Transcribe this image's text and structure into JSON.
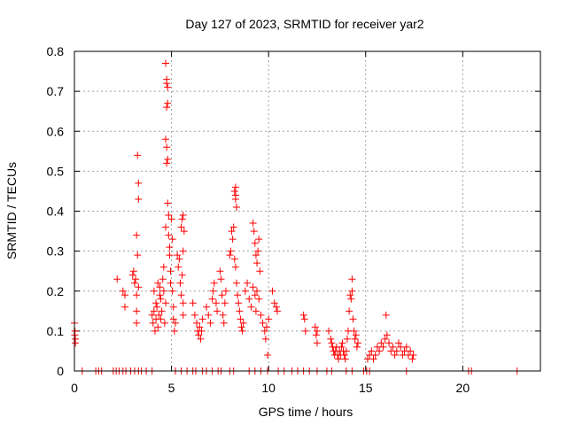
{
  "chart_data": {
    "type": "scatter",
    "title": "Day 127 of 2023, SRMTID for receiver yar2",
    "xlabel": "GPS time / hours",
    "ylabel": "SRMTID / TECUs",
    "xlim": [
      0,
      24
    ],
    "ylim": [
      0,
      0.8
    ],
    "x_ticks": [
      0,
      5,
      10,
      15,
      20
    ],
    "y_ticks": [
      0,
      0.1,
      0.2,
      0.3,
      0.4,
      0.5,
      0.6,
      0.7,
      0.8
    ],
    "x_tick_labels": [
      "0",
      "5",
      "10",
      "15",
      "20"
    ],
    "y_tick_labels": [
      "0",
      "0.1",
      "0.2",
      "0.3",
      "0.4",
      "0.5",
      "0.6",
      "0.7",
      "0.8"
    ],
    "grid": true,
    "marker": "+",
    "colors": {
      "points": "#ff0000",
      "grid": "#a0a0a0",
      "axes": "#000000"
    },
    "series": [
      {
        "name": "yar2",
        "points": [
          [
            0.0,
            0.12
          ],
          [
            0.02,
            0.09
          ],
          [
            0.03,
            0.1
          ],
          [
            0.05,
            0.08
          ],
          [
            0.05,
            0.07
          ],
          [
            2.2,
            0.23
          ],
          [
            2.5,
            0.2
          ],
          [
            2.6,
            0.16
          ],
          [
            2.6,
            0.19
          ],
          [
            3.0,
            0.24
          ],
          [
            3.05,
            0.25
          ],
          [
            3.1,
            0.22
          ],
          [
            3.15,
            0.23
          ],
          [
            3.2,
            0.19
          ],
          [
            3.2,
            0.15
          ],
          [
            3.2,
            0.12
          ],
          [
            3.25,
            0.29
          ],
          [
            3.3,
            0.21
          ],
          [
            3.2,
            0.34
          ],
          [
            3.3,
            0.47
          ],
          [
            3.3,
            0.43
          ],
          [
            3.25,
            0.54
          ],
          [
            4.0,
            0.14
          ],
          [
            4.05,
            0.12
          ],
          [
            4.1,
            0.15
          ],
          [
            4.15,
            0.1
          ],
          [
            4.2,
            0.13
          ],
          [
            4.25,
            0.16
          ],
          [
            4.3,
            0.11
          ],
          [
            4.35,
            0.14
          ],
          [
            4.4,
            0.19
          ],
          [
            4.45,
            0.13
          ],
          [
            4.1,
            0.2
          ],
          [
            4.2,
            0.17
          ],
          [
            4.3,
            0.22
          ],
          [
            4.4,
            0.21
          ],
          [
            4.45,
            0.18
          ],
          [
            4.5,
            0.15
          ],
          [
            4.55,
            0.23
          ],
          [
            4.6,
            0.2
          ],
          [
            4.6,
            0.26
          ],
          [
            4.65,
            0.12
          ],
          [
            4.7,
            0.17
          ],
          [
            4.7,
            0.36
          ],
          [
            4.7,
            0.77
          ],
          [
            4.75,
            0.73
          ],
          [
            4.75,
            0.72
          ],
          [
            4.8,
            0.71
          ],
          [
            4.8,
            0.67
          ],
          [
            4.75,
            0.66
          ],
          [
            4.7,
            0.58
          ],
          [
            4.75,
            0.56
          ],
          [
            4.8,
            0.53
          ],
          [
            4.75,
            0.52
          ],
          [
            4.8,
            0.42
          ],
          [
            4.85,
            0.39
          ],
          [
            4.85,
            0.34
          ],
          [
            4.9,
            0.31
          ],
          [
            4.9,
            0.29
          ],
          [
            4.95,
            0.25
          ],
          [
            4.95,
            0.22
          ],
          [
            5.0,
            0.38
          ],
          [
            5.05,
            0.33
          ],
          [
            5.05,
            0.2
          ],
          [
            5.1,
            0.16
          ],
          [
            5.1,
            0.13
          ],
          [
            5.15,
            0.1
          ],
          [
            5.2,
            0.12
          ],
          [
            5.3,
            0.29
          ],
          [
            5.35,
            0.26
          ],
          [
            5.4,
            0.28
          ],
          [
            5.45,
            0.22
          ],
          [
            5.5,
            0.19
          ],
          [
            5.55,
            0.24
          ],
          [
            5.6,
            0.17
          ],
          [
            5.6,
            0.14
          ],
          [
            5.5,
            0.36
          ],
          [
            5.55,
            0.38
          ],
          [
            5.6,
            0.39
          ],
          [
            5.65,
            0.35
          ],
          [
            5.6,
            0.3
          ],
          [
            6.1,
            0.17
          ],
          [
            6.2,
            0.14
          ],
          [
            6.3,
            0.12
          ],
          [
            6.35,
            0.1
          ],
          [
            6.4,
            0.09
          ],
          [
            6.45,
            0.11
          ],
          [
            6.5,
            0.08
          ],
          [
            6.55,
            0.1
          ],
          [
            6.6,
            0.13
          ],
          [
            6.8,
            0.16
          ],
          [
            6.9,
            0.14
          ],
          [
            7.0,
            0.12
          ],
          [
            7.1,
            0.18
          ],
          [
            7.15,
            0.2
          ],
          [
            7.2,
            0.22
          ],
          [
            7.3,
            0.17
          ],
          [
            7.35,
            0.15
          ],
          [
            7.5,
            0.25
          ],
          [
            7.55,
            0.23
          ],
          [
            7.6,
            0.19
          ],
          [
            7.65,
            0.14
          ],
          [
            7.7,
            0.12
          ],
          [
            7.75,
            0.17
          ],
          [
            7.8,
            0.2
          ],
          [
            8.0,
            0.29
          ],
          [
            8.05,
            0.3
          ],
          [
            8.1,
            0.35
          ],
          [
            8.15,
            0.33
          ],
          [
            8.2,
            0.36
          ],
          [
            8.25,
            0.28
          ],
          [
            8.3,
            0.26
          ],
          [
            8.25,
            0.45
          ],
          [
            8.3,
            0.46
          ],
          [
            8.3,
            0.43
          ],
          [
            8.35,
            0.41
          ],
          [
            8.3,
            0.44
          ],
          [
            8.35,
            0.22
          ],
          [
            8.4,
            0.19
          ],
          [
            8.45,
            0.17
          ],
          [
            8.5,
            0.15
          ],
          [
            8.55,
            0.13
          ],
          [
            8.6,
            0.11
          ],
          [
            8.65,
            0.1
          ],
          [
            8.7,
            0.12
          ],
          [
            8.8,
            0.2
          ],
          [
            8.9,
            0.22
          ],
          [
            9.0,
            0.18
          ],
          [
            9.1,
            0.16
          ],
          [
            9.2,
            0.21
          ],
          [
            9.3,
            0.19
          ],
          [
            9.35,
            0.15
          ],
          [
            9.2,
            0.37
          ],
          [
            9.25,
            0.35
          ],
          [
            9.3,
            0.32
          ],
          [
            9.35,
            0.29
          ],
          [
            9.4,
            0.27
          ],
          [
            9.45,
            0.3
          ],
          [
            9.5,
            0.33
          ],
          [
            9.55,
            0.25
          ],
          [
            9.4,
            0.2
          ],
          [
            9.5,
            0.18
          ],
          [
            9.6,
            0.14
          ],
          [
            9.7,
            0.12
          ],
          [
            9.8,
            0.1
          ],
          [
            9.85,
            0.08
          ],
          [
            9.9,
            0.11
          ],
          [
            9.95,
            0.04
          ],
          [
            10.0,
            0.13
          ],
          [
            10.2,
            0.2
          ],
          [
            10.3,
            0.17
          ],
          [
            10.4,
            0.16
          ],
          [
            10.45,
            0.15
          ],
          [
            11.8,
            0.14
          ],
          [
            11.85,
            0.13
          ],
          [
            11.9,
            0.1
          ],
          [
            12.4,
            0.11
          ],
          [
            12.45,
            0.09
          ],
          [
            12.5,
            0.07
          ],
          [
            12.5,
            0.1
          ],
          [
            13.1,
            0.1
          ],
          [
            13.2,
            0.08
          ],
          [
            13.25,
            0.07
          ],
          [
            13.3,
            0.06
          ],
          [
            13.35,
            0.05
          ],
          [
            13.4,
            0.04
          ],
          [
            13.45,
            0.05
          ],
          [
            13.5,
            0.06
          ],
          [
            13.55,
            0.04
          ],
          [
            13.6,
            0.03
          ],
          [
            13.65,
            0.05
          ],
          [
            13.7,
            0.04
          ],
          [
            13.75,
            0.06
          ],
          [
            13.8,
            0.07
          ],
          [
            13.85,
            0.05
          ],
          [
            13.9,
            0.04
          ],
          [
            13.95,
            0.03
          ],
          [
            14.0,
            0.05
          ],
          [
            14.05,
            0.08
          ],
          [
            14.1,
            0.1
          ],
          [
            14.15,
            0.15
          ],
          [
            14.2,
            0.19
          ],
          [
            14.25,
            0.18
          ],
          [
            14.3,
            0.2
          ],
          [
            14.3,
            0.23
          ],
          [
            14.35,
            0.13
          ],
          [
            14.4,
            0.1
          ],
          [
            14.45,
            0.08
          ],
          [
            14.5,
            0.09
          ],
          [
            14.55,
            0.06
          ],
          [
            14.6,
            0.07
          ],
          [
            15.1,
            0.03
          ],
          [
            15.2,
            0.04
          ],
          [
            15.3,
            0.05
          ],
          [
            15.4,
            0.03
          ],
          [
            15.5,
            0.04
          ],
          [
            15.6,
            0.06
          ],
          [
            15.7,
            0.05
          ],
          [
            15.8,
            0.07
          ],
          [
            15.9,
            0.06
          ],
          [
            16.0,
            0.08
          ],
          [
            16.05,
            0.14
          ],
          [
            16.1,
            0.09
          ],
          [
            16.2,
            0.07
          ],
          [
            16.3,
            0.05
          ],
          [
            16.4,
            0.06
          ],
          [
            16.5,
            0.04
          ],
          [
            16.6,
            0.05
          ],
          [
            16.7,
            0.07
          ],
          [
            16.8,
            0.06
          ],
          [
            16.9,
            0.04
          ],
          [
            17.0,
            0.05
          ],
          [
            17.1,
            0.06
          ],
          [
            17.2,
            0.04
          ],
          [
            17.3,
            0.05
          ],
          [
            17.4,
            0.03
          ],
          [
            17.45,
            0.04
          ],
          [
            0.4,
            0.0
          ],
          [
            1.1,
            0.0
          ],
          [
            1.25,
            0.0
          ],
          [
            1.4,
            0.0
          ],
          [
            2.0,
            0.0
          ],
          [
            2.15,
            0.0
          ],
          [
            2.3,
            0.0
          ],
          [
            2.5,
            0.0
          ],
          [
            2.65,
            0.0
          ],
          [
            2.9,
            0.0
          ],
          [
            3.1,
            0.0
          ],
          [
            3.3,
            0.0
          ],
          [
            3.45,
            0.0
          ],
          [
            3.7,
            0.0
          ],
          [
            4.0,
            0.0
          ],
          [
            5.2,
            0.0
          ],
          [
            5.5,
            0.0
          ],
          [
            5.8,
            0.0
          ],
          [
            6.1,
            0.0
          ],
          [
            6.25,
            0.0
          ],
          [
            6.6,
            0.0
          ],
          [
            6.8,
            0.0
          ],
          [
            7.1,
            0.0
          ],
          [
            7.4,
            0.0
          ],
          [
            7.55,
            0.0
          ],
          [
            8.0,
            0.0
          ],
          [
            8.2,
            0.0
          ],
          [
            9.0,
            0.0
          ],
          [
            9.3,
            0.0
          ],
          [
            9.6,
            0.0
          ],
          [
            9.95,
            0.0
          ],
          [
            10.5,
            0.0
          ],
          [
            10.8,
            0.0
          ],
          [
            11.2,
            0.0
          ],
          [
            11.5,
            0.0
          ],
          [
            11.8,
            0.0
          ],
          [
            12.1,
            0.0
          ],
          [
            12.5,
            0.0
          ],
          [
            13.0,
            0.0
          ],
          [
            13.25,
            0.0
          ],
          [
            14.0,
            0.0
          ],
          [
            14.3,
            0.0
          ],
          [
            14.9,
            0.0
          ],
          [
            15.05,
            0.0
          ],
          [
            15.2,
            0.0
          ],
          [
            17.1,
            0.0
          ],
          [
            20.3,
            0.0
          ],
          [
            20.45,
            0.0
          ],
          [
            22.8,
            0.0
          ]
        ]
      }
    ]
  }
}
